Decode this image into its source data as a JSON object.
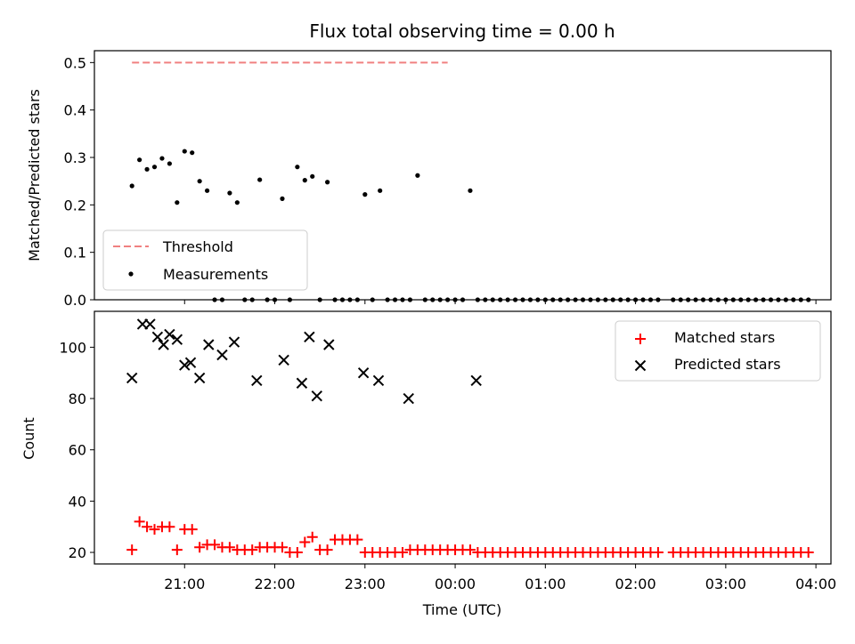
{
  "chart_data": [
    {
      "type": "scatter",
      "title": "Flux total observing time = 0.00 h",
      "xlabel": "",
      "ylabel": "Matched/Predicted stars",
      "ylim": [
        0,
        0.525
      ],
      "yticks": [
        0.0,
        0.1,
        0.2,
        0.3,
        0.4,
        0.5
      ],
      "legend_position": "lower-left",
      "series": [
        {
          "name": "Threshold",
          "style": "dashed-line",
          "color": "#f08080",
          "x": [
            "20:25",
            "23:55"
          ],
          "y": [
            0.5,
            0.5
          ]
        },
        {
          "name": "Measurements",
          "style": "dots",
          "color": "#000000",
          "x": [
            "20:25",
            "20:30",
            "20:35",
            "20:40",
            "20:45",
            "20:50",
            "20:55",
            "21:00",
            "21:05",
            "21:10",
            "21:15",
            "21:20",
            "21:25",
            "21:30",
            "21:35",
            "21:40",
            "21:45",
            "21:50",
            "21:55",
            "22:00",
            "22:05",
            "22:10",
            "22:15",
            "22:20",
            "22:25",
            "22:30",
            "22:35",
            "22:40",
            "22:45",
            "22:50",
            "22:55",
            "23:00",
            "23:05",
            "23:10",
            "23:15",
            "23:20",
            "23:25",
            "23:30",
            "23:35",
            "23:40",
            "23:45",
            "23:50",
            "23:55",
            "00:00",
            "00:05",
            "00:10",
            "00:15",
            "00:20",
            "00:25",
            "00:30",
            "00:35",
            "00:40",
            "00:45",
            "00:50",
            "00:55",
            "01:00",
            "01:05",
            "01:10",
            "01:15",
            "01:20",
            "01:25",
            "01:30",
            "01:35",
            "01:40",
            "01:45",
            "01:50",
            "01:55",
            "02:00",
            "02:05",
            "02:10",
            "02:15",
            "02:25",
            "02:30",
            "02:35",
            "02:40",
            "02:45",
            "02:50",
            "02:55",
            "03:00",
            "03:05",
            "03:10",
            "03:15",
            "03:20",
            "03:25",
            "03:30",
            "03:35",
            "03:40",
            "03:45",
            "03:50",
            "03:55"
          ],
          "y": [
            0.24,
            0.295,
            0.275,
            0.28,
            0.298,
            0.287,
            0.205,
            0.313,
            0.31,
            0.25,
            0.23,
            0.0,
            0.0,
            0.225,
            0.205,
            0.0,
            0.0,
            0.253,
            0.0,
            0.0,
            0.213,
            0.0,
            0.28,
            0.252,
            0.26,
            0.0,
            0.248,
            0.0,
            0.0,
            0.0,
            0.0,
            0.222,
            0.0,
            0.23,
            0.0,
            0.0,
            0.0,
            0.0,
            0.262,
            0.0,
            0.0,
            0.0,
            0.0,
            0.0,
            0.0,
            0.23,
            0.0,
            0.0,
            0.0,
            0.0,
            0.0,
            0.0,
            0.0,
            0.0,
            0.0,
            0.0,
            0.0,
            0.0,
            0.0,
            0.0,
            0.0,
            0.0,
            0.0,
            0.0,
            0.0,
            0.0,
            0.0,
            0.0,
            0.0,
            0.0,
            0.0,
            0.0,
            0.0,
            0.0,
            0.0,
            0.0,
            0.0,
            0.0,
            0.0,
            0.0,
            0.0,
            0.0,
            0.0,
            0.0,
            0.0,
            0.0,
            0.0,
            0.0,
            0.0,
            0.0
          ]
        }
      ]
    },
    {
      "type": "scatter",
      "title": "",
      "xlabel": "Time (UTC)",
      "ylabel": "Count",
      "ylim": [
        15.5,
        114
      ],
      "yticks": [
        20,
        40,
        60,
        80,
        100
      ],
      "xticks": [
        "21:00",
        "22:00",
        "23:00",
        "00:00",
        "01:00",
        "02:00",
        "03:00",
        "04:00"
      ],
      "xlim": [
        "20:00",
        "04:10"
      ],
      "legend_position": "upper-right",
      "series": [
        {
          "name": "Matched stars",
          "marker": "plus",
          "color": "#ff0000",
          "x": [
            "20:25",
            "20:30",
            "20:35",
            "20:40",
            "20:45",
            "20:50",
            "20:55",
            "21:00",
            "21:05",
            "21:10",
            "21:15",
            "21:20",
            "21:25",
            "21:30",
            "21:35",
            "21:40",
            "21:45",
            "21:50",
            "21:55",
            "22:00",
            "22:05",
            "22:10",
            "22:15",
            "22:20",
            "22:25",
            "22:30",
            "22:35",
            "22:40",
            "22:45",
            "22:50",
            "22:55",
            "23:00",
            "23:05",
            "23:10",
            "23:15",
            "23:20",
            "23:25",
            "23:30",
            "23:35",
            "23:40",
            "23:45",
            "23:50",
            "23:55",
            "00:00",
            "00:05",
            "00:10",
            "00:15",
            "00:20",
            "00:25",
            "00:30",
            "00:35",
            "00:40",
            "00:45",
            "00:50",
            "00:55",
            "01:00",
            "01:05",
            "01:10",
            "01:15",
            "01:20",
            "01:25",
            "01:30",
            "01:35",
            "01:40",
            "01:45",
            "01:50",
            "01:55",
            "02:00",
            "02:05",
            "02:10",
            "02:15",
            "02:25",
            "02:30",
            "02:35",
            "02:40",
            "02:45",
            "02:50",
            "02:55",
            "03:00",
            "03:05",
            "03:10",
            "03:15",
            "03:20",
            "03:25",
            "03:30",
            "03:35",
            "03:40",
            "03:45",
            "03:50",
            "03:55"
          ],
          "y": [
            21,
            32,
            30,
            29,
            30,
            30,
            21,
            29,
            29,
            22,
            23,
            23,
            22,
            22,
            21,
            21,
            21,
            22,
            22,
            22,
            22,
            20,
            20,
            24,
            26,
            21,
            21,
            25,
            25,
            25,
            25,
            20,
            20,
            20,
            20,
            20,
            20,
            21,
            21,
            21,
            21,
            21,
            21,
            21,
            21,
            21,
            20,
            20,
            20,
            20,
            20,
            20,
            20,
            20,
            20,
            20,
            20,
            20,
            20,
            20,
            20,
            20,
            20,
            20,
            20,
            20,
            20,
            20,
            20,
            20,
            20,
            20,
            20,
            20,
            20,
            20,
            20,
            20,
            20,
            20,
            20,
            20,
            20,
            20,
            20,
            20,
            20,
            20,
            20,
            20
          ]
        },
        {
          "name": "Predicted stars",
          "marker": "x",
          "color": "#000000",
          "x": [
            "20:25",
            "20:32",
            "20:37",
            "20:42",
            "20:46",
            "20:50",
            "20:55",
            "21:00",
            "21:04",
            "21:10",
            "21:16",
            "21:25",
            "21:33",
            "21:48",
            "22:06",
            "22:18",
            "22:23",
            "22:28",
            "22:36",
            "22:59",
            "23:09",
            "23:29",
            "00:14"
          ],
          "y": [
            88,
            109,
            109,
            104,
            101,
            105,
            103,
            93,
            94,
            88,
            101,
            97,
            102,
            87,
            95,
            86,
            104,
            81,
            101,
            90,
            87,
            80,
            87
          ]
        }
      ]
    }
  ]
}
